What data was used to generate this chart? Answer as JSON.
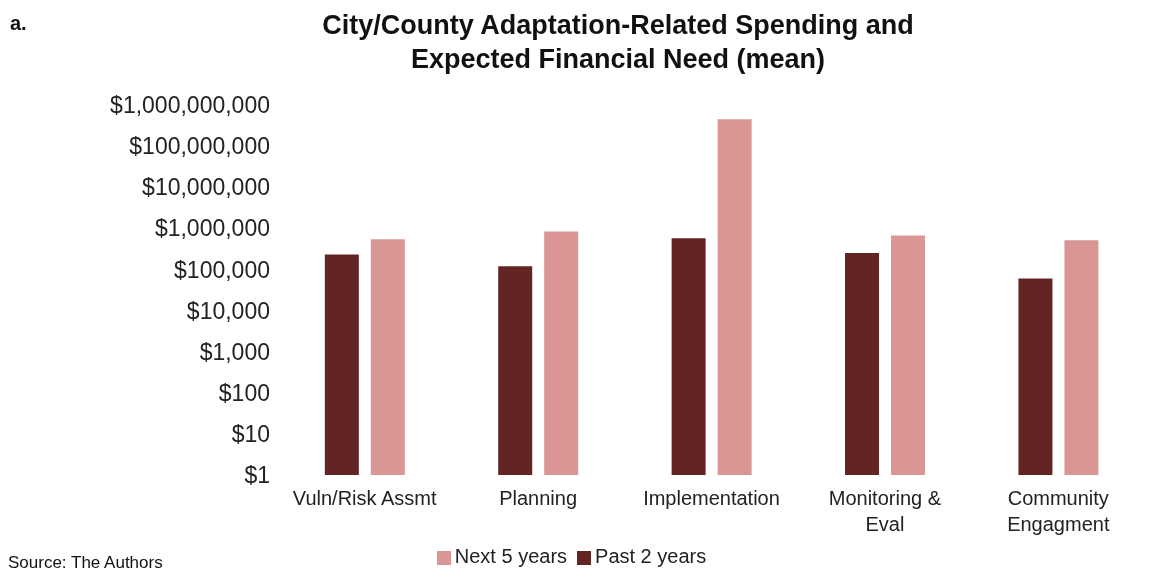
{
  "chart_data": {
    "type": "bar",
    "title": "City/County Adaptation-Related Spending and Expected Financial Need (mean)",
    "annotations": [
      "a.",
      "Source: The Authors"
    ],
    "categories": [
      "Vuln/Risk Assmt",
      "Planning",
      "Implementation",
      "Monitoring & Eval",
      "Community Engagment"
    ],
    "series": [
      {
        "name": "Past 2 years",
        "color": "#632523",
        "values": [
          230000,
          120000,
          570000,
          250000,
          60000
        ]
      },
      {
        "name": "Next 5 years",
        "color": "#d99694",
        "values": [
          540000,
          840000,
          450000000,
          670000,
          510000
        ]
      }
    ],
    "log": "y",
    "ylim": [
      1,
      1000000000
    ],
    "yticks": [
      {
        "value": 1,
        "label": "$1"
      },
      {
        "value": 10,
        "label": "$10"
      },
      {
        "value": 100,
        "label": "$100"
      },
      {
        "value": 1000,
        "label": "$1,000"
      },
      {
        "value": 10000,
        "label": "$10,000"
      },
      {
        "value": 100000,
        "label": "$100,000"
      },
      {
        "value": 1000000,
        "label": "$1,000,000"
      },
      {
        "value": 10000000,
        "label": "$10,000,000"
      },
      {
        "value": 100000000,
        "label": "$100,000,000"
      },
      {
        "value": 1000000000,
        "label": "$1,000,000,000"
      }
    ],
    "grid": false,
    "legend": "bottom"
  }
}
